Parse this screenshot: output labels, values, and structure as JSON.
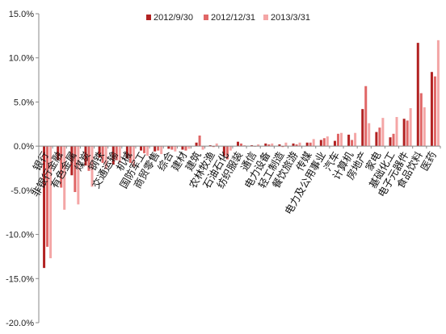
{
  "chart_data": {
    "type": "bar",
    "title": "",
    "xlabel": "",
    "ylabel": "",
    "ylim": [
      -20,
      15
    ],
    "y_ticks": [
      "15.0%",
      "10.0%",
      "5.0%",
      "0.0%",
      "-5.0%",
      "-10.0%",
      "-15.0%",
      "-20.0%"
    ],
    "grid": false,
    "legend_position": "top-right",
    "categories": [
      "银行",
      "非银行金融",
      "有色金属",
      "煤炭",
      "钢铁",
      "交通运输",
      "机械",
      "国防军工",
      "商贸零售",
      "综合",
      "建材",
      "建筑",
      "农林牧渔",
      "石油石化",
      "纺织服装",
      "通信",
      "电力设备",
      "轻工制造",
      "餐饮旅游",
      "传媒",
      "电力及公用事业",
      "汽车",
      "计算机",
      "房地产",
      "家电",
      "基础化工",
      "电子元器件",
      "食品饮料",
      "医药"
    ],
    "series": [
      {
        "name": "2012/9/30",
        "color": "#b22222",
        "values": [
          -13.8,
          -1.6,
          -3.3,
          -2.2,
          -1.3,
          -2.1,
          -1.4,
          -0.5,
          -0.6,
          -0.3,
          -0.4,
          0.4,
          0.1,
          -1.1,
          0.5,
          0.1,
          0.3,
          0.2,
          0.3,
          0.4,
          0.7,
          0.6,
          1.3,
          4.2,
          1.6,
          1.0,
          3.1,
          11.7,
          8.4
        ]
      },
      {
        "name": "2012/12/31",
        "color": "#e06666",
        "values": [
          -11.4,
          -4.7,
          -5.2,
          -2.8,
          -1.9,
          -1.6,
          -1.9,
          -0.8,
          -0.5,
          -0.4,
          -0.5,
          1.2,
          -0.1,
          -1.5,
          0.3,
          0.0,
          0.2,
          -0.1,
          0.2,
          0.4,
          0.9,
          1.4,
          0.7,
          6.8,
          2.1,
          1.4,
          2.9,
          6.0,
          7.9
        ]
      },
      {
        "name": "2013/3/31",
        "color": "#f4a6a6",
        "values": [
          -12.7,
          -7.2,
          -6.6,
          -4.6,
          -2.6,
          -1.9,
          -2.3,
          -1.1,
          -0.9,
          -0.6,
          -0.3,
          -0.4,
          0.3,
          -0.5,
          0.1,
          0.2,
          0.3,
          0.4,
          0.4,
          0.8,
          1.1,
          1.5,
          1.5,
          2.6,
          3.2,
          3.3,
          4.3,
          4.4,
          12.0
        ]
      }
    ]
  }
}
